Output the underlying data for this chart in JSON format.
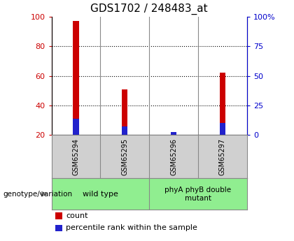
{
  "title": "GDS1702 / 248483_at",
  "samples": [
    "GSM65294",
    "GSM65295",
    "GSM65296",
    "GSM65297"
  ],
  "count_values": [
    97,
    51,
    22,
    62
  ],
  "count_base": 20,
  "percentile_values": [
    31,
    26,
    22,
    28
  ],
  "percentile_base": 20,
  "ylim_left": [
    20,
    100
  ],
  "ylim_right": [
    0,
    100
  ],
  "yticks_left": [
    20,
    40,
    60,
    80,
    100
  ],
  "yticks_right": [
    0,
    25,
    50,
    75,
    100
  ],
  "ytick_labels_right": [
    "0",
    "25",
    "50",
    "75",
    "100%"
  ],
  "bar_width": 0.12,
  "blue_bar_width": 0.12,
  "count_color": "#cc0000",
  "percentile_color": "#2222cc",
  "group1_label": "wild type",
  "group2_label": "phyA phyB double\nmutant",
  "genotype_label": "genotype/variation",
  "legend_count": "count",
  "legend_percentile": "percentile rank within the sample",
  "title_fontsize": 11,
  "axis_color_left": "#cc0000",
  "axis_color_right": "#0000cc",
  "background_color": "#ffffff",
  "plot_bg": "#ffffff",
  "group_bg": "#90ee90",
  "sample_bg": "#d0d0d0",
  "grid_yticks": [
    40,
    60,
    80
  ]
}
